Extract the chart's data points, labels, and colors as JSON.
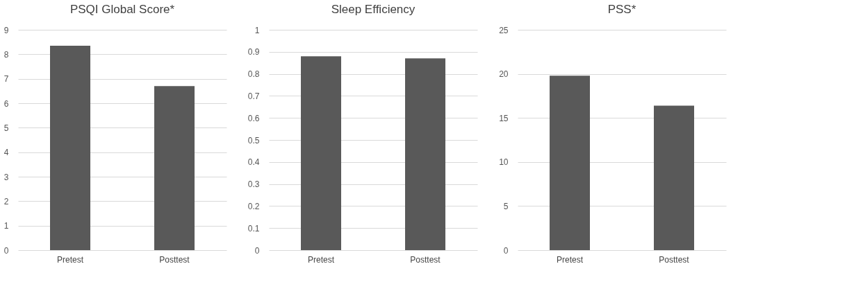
{
  "chart_data": [
    {
      "type": "bar",
      "title": "PSQI Global Score*",
      "categories": [
        "Pretest",
        "Posttest"
      ],
      "values": [
        8.35,
        6.7
      ],
      "color": "#595959",
      "ylim": [
        0,
        9
      ],
      "yticks": [
        0,
        1,
        2,
        3,
        4,
        5,
        6,
        7,
        8,
        9
      ],
      "grid": "y"
    },
    {
      "type": "bar",
      "title": "Sleep Efficiency",
      "categories": [
        "Pretest",
        "Posttest"
      ],
      "values": [
        0.88,
        0.87
      ],
      "color": "#595959",
      "ylim": [
        0,
        1
      ],
      "yticks": [
        0,
        0.1,
        0.2,
        0.3,
        0.4,
        0.5,
        0.6,
        0.7,
        0.8,
        0.9,
        1
      ],
      "grid": "y"
    },
    {
      "type": "bar",
      "title": "PSS*",
      "categories": [
        "Pretest",
        "Posttest"
      ],
      "values": [
        19.8,
        16.4
      ],
      "color": "#595959",
      "ylim": [
        0,
        25
      ],
      "yticks": [
        0,
        5,
        10,
        15,
        20,
        25
      ],
      "grid": "y"
    }
  ]
}
